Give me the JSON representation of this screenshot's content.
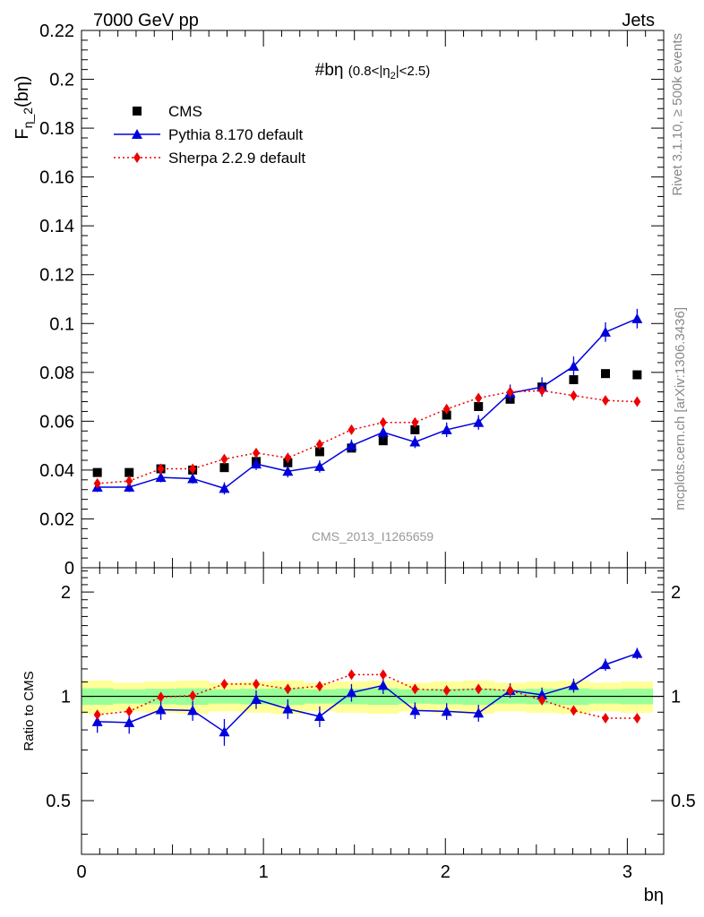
{
  "header": {
    "left": "7000 GeV pp",
    "right": "Jets"
  },
  "side_labels": {
    "rivet": "Rivet 3.1.10, ≥ 500k events",
    "mcplots": "mcplots.cern.ch [arXiv:1306.3436]"
  },
  "watermark": "CMS_2013_I1265659",
  "chart_data": [
    {
      "type": "scatter",
      "title": "#bη (0.8<|η2|<2.5)",
      "title_main": "#bη",
      "title_sub_pre": "(0.8<|η",
      "title_sub_index": "2",
      "title_sub_post": "|<2.5)",
      "ylabel": "Fη_2(bη)",
      "ylabel_base": "F",
      "ylabel_sub": "η_2",
      "ylabel_arg": "(bη)",
      "xlabel": "bη",
      "xlim": [
        0,
        3.2
      ],
      "ylim": [
        0,
        0.22
      ],
      "y_ticks": [
        "0",
        "0.02",
        "0.04",
        "0.06",
        "0.08",
        "0.1",
        "0.12",
        "0.14",
        "0.16",
        "0.18",
        "0.2",
        "0.22"
      ],
      "x_ticks": [
        "0",
        "1",
        "2",
        "3"
      ],
      "legend_position": "top-left",
      "x": [
        0.087,
        0.262,
        0.436,
        0.611,
        0.785,
        0.96,
        1.134,
        1.309,
        1.484,
        1.658,
        1.833,
        2.007,
        2.182,
        2.356,
        2.531,
        2.705,
        2.88,
        3.054
      ],
      "series": [
        {
          "name": "CMS",
          "color": "#000000",
          "marker": "square",
          "values": [
            0.039,
            0.039,
            0.0405,
            0.04,
            0.041,
            0.0435,
            0.043,
            0.0475,
            0.049,
            0.052,
            0.0565,
            0.0625,
            0.066,
            0.069,
            0.074,
            0.077,
            0.0795,
            0.079
          ]
        },
        {
          "name": "Pythia 8.170 default",
          "color": "#0000dd",
          "marker": "triangle",
          "line": "solid",
          "values": [
            0.033,
            0.033,
            0.037,
            0.0365,
            0.0325,
            0.0425,
            0.0395,
            0.0415,
            0.05,
            0.0555,
            0.0515,
            0.0565,
            0.0595,
            0.0715,
            0.074,
            0.0825,
            0.0965,
            0.102
          ],
          "errors": [
            0.002,
            0.002,
            0.002,
            0.002,
            0.0025,
            0.0025,
            0.0025,
            0.0025,
            0.0025,
            0.003,
            0.0025,
            0.003,
            0.003,
            0.0035,
            0.004,
            0.004,
            0.004,
            0.004
          ]
        },
        {
          "name": "Sherpa 2.2.9 default",
          "color": "#ee0000",
          "marker": "diamond",
          "line": "dotted",
          "values": [
            0.0345,
            0.0355,
            0.0405,
            0.0405,
            0.0445,
            0.047,
            0.045,
            0.0505,
            0.0565,
            0.0595,
            0.0595,
            0.065,
            0.0695,
            0.072,
            0.0725,
            0.0705,
            0.0685,
            0.068
          ],
          "errors": [
            0.001,
            0.001,
            0.001,
            0.001,
            0.001,
            0.001,
            0.001,
            0.001,
            0.001,
            0.001,
            0.001,
            0.001,
            0.001,
            0.001,
            0.001,
            0.001,
            0.001,
            0.001
          ]
        }
      ]
    },
    {
      "type": "scatter",
      "ylabel": "Ratio to CMS",
      "xlabel": "bη",
      "xlim": [
        0,
        3.2
      ],
      "ylim": [
        0.35,
        2.35
      ],
      "y_ticks": [
        "0.5",
        "1",
        "2"
      ],
      "x_ticks": [
        "0",
        "1",
        "2",
        "3"
      ],
      "x": [
        0.087,
        0.262,
        0.436,
        0.611,
        0.785,
        0.96,
        1.134,
        1.309,
        1.484,
        1.658,
        1.833,
        2.007,
        2.182,
        2.356,
        2.531,
        2.705,
        2.88,
        3.054
      ],
      "band_inner": 0.05,
      "band_outer": 0.1,
      "band_colors": [
        "#ffff99",
        "#99ff99"
      ],
      "series": [
        {
          "name": "Pythia 8.170 default",
          "color": "#0000dd",
          "marker": "triangle",
          "line": "solid",
          "values": [
            0.845,
            0.84,
            0.915,
            0.91,
            0.79,
            0.98,
            0.92,
            0.875,
            1.025,
            1.075,
            0.91,
            0.905,
            0.895,
            1.04,
            1.01,
            1.075,
            1.235,
            1.33
          ],
          "errors": [
            0.06,
            0.06,
            0.06,
            0.06,
            0.07,
            0.06,
            0.06,
            0.06,
            0.06,
            0.06,
            0.05,
            0.05,
            0.05,
            0.05,
            0.05,
            0.05,
            0.05,
            0.05
          ]
        },
        {
          "name": "Sherpa 2.2.9 default",
          "color": "#ee0000",
          "marker": "diamond",
          "line": "dotted",
          "values": [
            0.885,
            0.905,
            0.995,
            1.005,
            1.085,
            1.085,
            1.05,
            1.07,
            1.155,
            1.155,
            1.05,
            1.04,
            1.05,
            1.04,
            0.975,
            0.91,
            0.865,
            0.865
          ],
          "errors": [
            0.01,
            0.01,
            0.01,
            0.01,
            0.01,
            0.01,
            0.01,
            0.01,
            0.01,
            0.01,
            0.01,
            0.01,
            0.01,
            0.01,
            0.01,
            0.01,
            0.01,
            0.01
          ]
        }
      ]
    }
  ]
}
